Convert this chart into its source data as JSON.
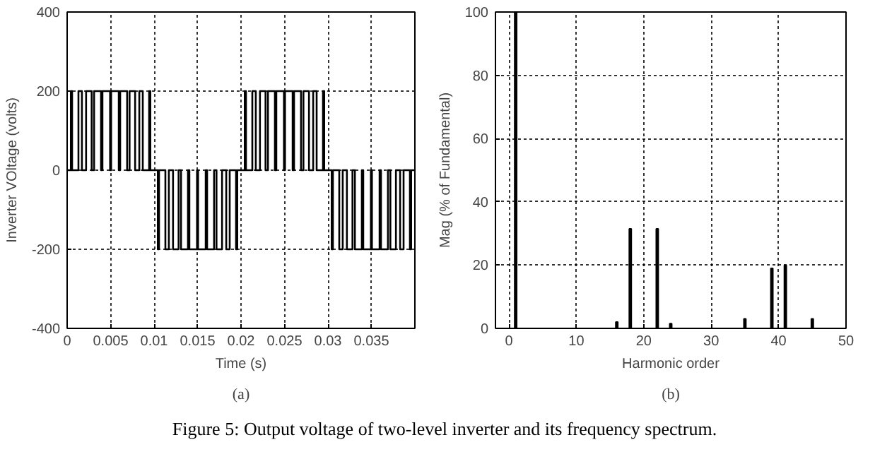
{
  "chart_data": [
    {
      "type": "step",
      "xlabel": "Time (s)",
      "ylabel": "Inverter VOltage (volts)",
      "annotations": [
        "(a)"
      ],
      "color": "#000000",
      "grid": true,
      "x": [
        0,
        0.00043,
        0.00057,
        0.0013,
        0.0017,
        0.00218,
        0.00282,
        0.0031,
        0.0039,
        0.00406,
        0.00494,
        0.00506,
        0.00594,
        0.0061,
        0.0069,
        0.00718,
        0.00782,
        0.0083,
        0.0087,
        0.00943,
        0.00957,
        0.01043,
        0.01057,
        0.0113,
        0.0117,
        0.01218,
        0.01282,
        0.0131,
        0.0139,
        0.01406,
        0.01494,
        0.01506,
        0.01594,
        0.0161,
        0.0169,
        0.01718,
        0.01782,
        0.0183,
        0.0187,
        0.01943,
        0.01957,
        0.02043,
        0.02057,
        0.0213,
        0.0217,
        0.02218,
        0.02282,
        0.0231,
        0.0239,
        0.02406,
        0.02494,
        0.02506,
        0.02594,
        0.0261,
        0.0269,
        0.02718,
        0.02782,
        0.0283,
        0.0287,
        0.02943,
        0.02957,
        0.03043,
        0.03057,
        0.0313,
        0.0317,
        0.03218,
        0.03282,
        0.0331,
        0.0339,
        0.03406,
        0.03494,
        0.03506,
        0.03594,
        0.0361,
        0.0369,
        0.03718,
        0.03782,
        0.0383,
        0.0387,
        0.03943,
        0.03957,
        0.04
      ],
      "values": [
        0,
        200,
        0,
        200,
        0,
        200,
        0,
        200,
        0,
        200,
        0,
        200,
        0,
        200,
        0,
        200,
        0,
        200,
        0,
        200,
        0,
        -200,
        0,
        -200,
        0,
        -200,
        0,
        -200,
        0,
        -200,
        0,
        -200,
        0,
        -200,
        0,
        -200,
        0,
        -200,
        0,
        -200,
        0,
        200,
        0,
        200,
        0,
        200,
        0,
        200,
        0,
        200,
        0,
        200,
        0,
        200,
        0,
        200,
        0,
        200,
        0,
        200,
        0,
        -200,
        0,
        -200,
        0,
        -200,
        0,
        -200,
        0,
        -200,
        0,
        -200,
        0,
        -200,
        0,
        -200,
        0,
        -200,
        0,
        -200,
        0,
        0
      ],
      "xlim": [
        0,
        0.04
      ],
      "xticks": [
        0,
        0.005,
        0.01,
        0.015,
        0.02,
        0.025,
        0.03,
        0.035
      ],
      "ylim": [
        -400,
        400
      ],
      "yticks": [
        -400,
        -200,
        0,
        200,
        400
      ]
    },
    {
      "type": "bar",
      "xlabel": "Harmonic order",
      "ylabel": "Mag (% of Fundamental)",
      "annotations": [
        "(b)",
        "Figure 5: Output voltage of two-level inverter and its frequency spectrum."
      ],
      "color": "#000000",
      "grid": true,
      "x": [
        1,
        16,
        18,
        22,
        24,
        35,
        39,
        41,
        45
      ],
      "values": [
        100,
        2,
        31.5,
        31.5,
        1.5,
        3,
        19,
        20,
        3
      ],
      "xlim": [
        -2,
        50
      ],
      "xticks": [
        0,
        10,
        20,
        30,
        40,
        50
      ],
      "ylim": [
        0,
        100
      ],
      "yticks": [
        0,
        20,
        40,
        60,
        80,
        100
      ]
    }
  ]
}
